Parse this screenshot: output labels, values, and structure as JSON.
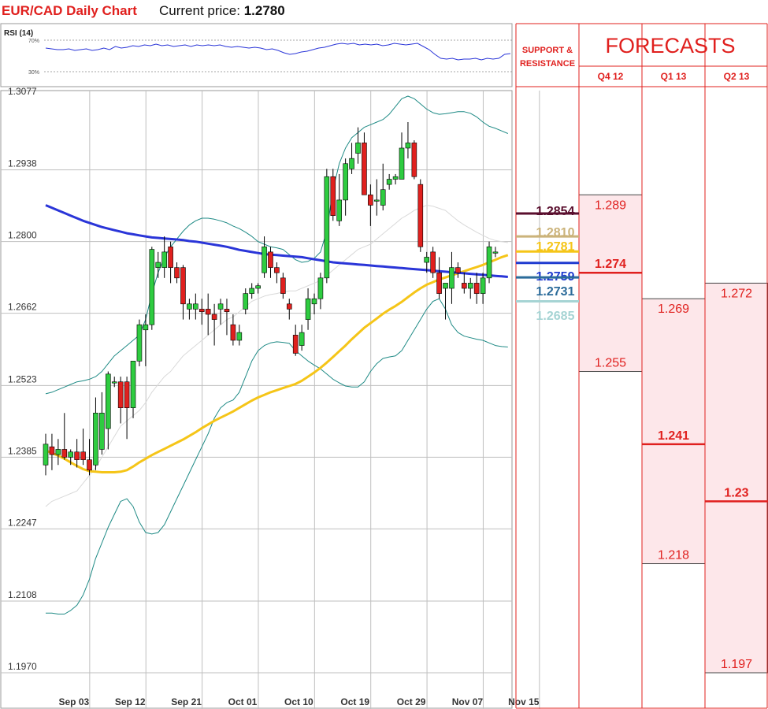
{
  "header": {
    "pair_title": "EUR/CAD Daily Chart",
    "price_label": "Current price:",
    "price_value": "1.2780"
  },
  "rsi_panel": {
    "label": "RSI (14)",
    "level_high": "70%",
    "level_low": "30%",
    "levels": [
      70,
      30
    ],
    "values": [
      60,
      59,
      58,
      58,
      59,
      57,
      58,
      59,
      57,
      58,
      60,
      58,
      62,
      60,
      61,
      63,
      62,
      64,
      63,
      65,
      63,
      64,
      62,
      63,
      64,
      62,
      64,
      63,
      64,
      63,
      64,
      62,
      61,
      62,
      61,
      60,
      61,
      60,
      58,
      59,
      57,
      54,
      52,
      53,
      55,
      56,
      58,
      60,
      61,
      63,
      65,
      66,
      65,
      66,
      64,
      65,
      64,
      65,
      63,
      64,
      66,
      65,
      64,
      65,
      66,
      62,
      58,
      52,
      47,
      46,
      47,
      45,
      46,
      46,
      47,
      45,
      47,
      46,
      47,
      52,
      53
    ]
  },
  "chart_data": {
    "type": "candlestick",
    "title": "EUR/CAD Daily Chart",
    "ylim": [
      1.197,
      1.3077
    ],
    "y_ticks": [
      "1.3077",
      "1.2938",
      "1.2800",
      "1.2662",
      "1.2523",
      "1.2385",
      "1.2247",
      "1.2108",
      "1.1970"
    ],
    "x_labels": [
      {
        "label": "Sep 03",
        "index": 2
      },
      {
        "label": "Sep 12",
        "index": 11
      },
      {
        "label": "Sep 21",
        "index": 20
      },
      {
        "label": "Oct 01",
        "index": 29
      },
      {
        "label": "Oct 10",
        "index": 38
      },
      {
        "label": "Oct 19",
        "index": 47
      },
      {
        "label": "Oct 29",
        "index": 56
      },
      {
        "label": "Nov 07",
        "index": 65
      },
      {
        "label": "Nov 15",
        "index": 74
      }
    ],
    "candles": [
      {
        "o": 1.237,
        "h": 1.243,
        "l": 1.235,
        "c": 1.241
      },
      {
        "o": 1.2405,
        "h": 1.243,
        "l": 1.236,
        "c": 1.239
      },
      {
        "o": 1.239,
        "h": 1.242,
        "l": 1.237,
        "c": 1.24
      },
      {
        "o": 1.24,
        "h": 1.247,
        "l": 1.238,
        "c": 1.2385
      },
      {
        "o": 1.2385,
        "h": 1.24,
        "l": 1.237,
        "c": 1.2395
      },
      {
        "o": 1.2395,
        "h": 1.242,
        "l": 1.2365,
        "c": 1.238
      },
      {
        "o": 1.2395,
        "h": 1.244,
        "l": 1.237,
        "c": 1.238
      },
      {
        "o": 1.238,
        "h": 1.242,
        "l": 1.235,
        "c": 1.236
      },
      {
        "o": 1.237,
        "h": 1.25,
        "l": 1.236,
        "c": 1.247
      },
      {
        "o": 1.24,
        "h": 1.251,
        "l": 1.239,
        "c": 1.247
      },
      {
        "o": 1.244,
        "h": 1.255,
        "l": 1.24,
        "c": 1.2545
      },
      {
        "o": 1.253,
        "h": 1.254,
        "l": 1.252,
        "c": 1.253
      },
      {
        "o": 1.253,
        "h": 1.254,
        "l": 1.245,
        "c": 1.248
      },
      {
        "o": 1.253,
        "h": 1.254,
        "l": 1.242,
        "c": 1.248
      },
      {
        "o": 1.248,
        "h": 1.257,
        "l": 1.246,
        "c": 1.257
      },
      {
        "o": 1.257,
        "h": 1.265,
        "l": 1.256,
        "c": 1.264
      },
      {
        "o": 1.263,
        "h": 1.266,
        "l": 1.256,
        "c": 1.264
      },
      {
        "o": 1.264,
        "h": 1.279,
        "l": 1.263,
        "c": 1.2785
      },
      {
        "o": 1.275,
        "h": 1.278,
        "l": 1.273,
        "c": 1.276
      },
      {
        "o": 1.275,
        "h": 1.281,
        "l": 1.273,
        "c": 1.278
      },
      {
        "o": 1.279,
        "h": 1.28,
        "l": 1.272,
        "c": 1.275
      },
      {
        "o": 1.275,
        "h": 1.276,
        "l": 1.272,
        "c": 1.273
      },
      {
        "o": 1.275,
        "h": 1.2755,
        "l": 1.265,
        "c": 1.268
      },
      {
        "o": 1.267,
        "h": 1.269,
        "l": 1.265,
        "c": 1.268
      },
      {
        "o": 1.267,
        "h": 1.27,
        "l": 1.265,
        "c": 1.268
      },
      {
        "o": 1.267,
        "h": 1.269,
        "l": 1.264,
        "c": 1.2665
      },
      {
        "o": 1.267,
        "h": 1.27,
        "l": 1.262,
        "c": 1.266
      },
      {
        "o": 1.266,
        "h": 1.268,
        "l": 1.26,
        "c": 1.265
      },
      {
        "o": 1.267,
        "h": 1.269,
        "l": 1.264,
        "c": 1.268
      },
      {
        "o": 1.267,
        "h": 1.269,
        "l": 1.262,
        "c": 1.2665
      },
      {
        "o": 1.264,
        "h": 1.266,
        "l": 1.26,
        "c": 1.261
      },
      {
        "o": 1.261,
        "h": 1.264,
        "l": 1.26,
        "c": 1.2625
      },
      {
        "o": 1.267,
        "h": 1.271,
        "l": 1.266,
        "c": 1.27
      },
      {
        "o": 1.27,
        "h": 1.272,
        "l": 1.269,
        "c": 1.271
      },
      {
        "o": 1.271,
        "h": 1.272,
        "l": 1.27,
        "c": 1.2715
      },
      {
        "o": 1.274,
        "h": 1.281,
        "l": 1.273,
        "c": 1.279
      },
      {
        "o": 1.278,
        "h": 1.279,
        "l": 1.273,
        "c": 1.275
      },
      {
        "o": 1.275,
        "h": 1.276,
        "l": 1.272,
        "c": 1.274
      },
      {
        "o": 1.273,
        "h": 1.274,
        "l": 1.269,
        "c": 1.27
      },
      {
        "o": 1.268,
        "h": 1.269,
        "l": 1.265,
        "c": 1.267
      },
      {
        "o": 1.262,
        "h": 1.264,
        "l": 1.258,
        "c": 1.2585
      },
      {
        "o": 1.26,
        "h": 1.264,
        "l": 1.259,
        "c": 1.2625
      },
      {
        "o": 1.265,
        "h": 1.271,
        "l": 1.263,
        "c": 1.269
      },
      {
        "o": 1.268,
        "h": 1.27,
        "l": 1.266,
        "c": 1.269
      },
      {
        "o": 1.269,
        "h": 1.274,
        "l": 1.267,
        "c": 1.273
      },
      {
        "o": 1.273,
        "h": 1.294,
        "l": 1.272,
        "c": 1.2925
      },
      {
        "o": 1.2925,
        "h": 1.294,
        "l": 1.284,
        "c": 1.285
      },
      {
        "o": 1.284,
        "h": 1.293,
        "l": 1.283,
        "c": 1.288
      },
      {
        "o": 1.288,
        "h": 1.296,
        "l": 1.285,
        "c": 1.295
      },
      {
        "o": 1.294,
        "h": 1.299,
        "l": 1.293,
        "c": 1.296
      },
      {
        "o": 1.297,
        "h": 1.302,
        "l": 1.295,
        "c": 1.299
      },
      {
        "o": 1.299,
        "h": 1.301,
        "l": 1.289,
        "c": 1.289
      },
      {
        "o": 1.289,
        "h": 1.291,
        "l": 1.283,
        "c": 1.287
      },
      {
        "o": 1.288,
        "h": 1.292,
        "l": 1.285,
        "c": 1.288
      },
      {
        "o": 1.287,
        "h": 1.295,
        "l": 1.286,
        "c": 1.29
      },
      {
        "o": 1.291,
        "h": 1.293,
        "l": 1.29,
        "c": 1.292
      },
      {
        "o": 1.292,
        "h": 1.293,
        "l": 1.291,
        "c": 1.2925
      },
      {
        "o": 1.292,
        "h": 1.301,
        "l": 1.292,
        "c": 1.298
      },
      {
        "o": 1.298,
        "h": 1.303,
        "l": 1.296,
        "c": 1.299
      },
      {
        "o": 1.299,
        "h": 1.2995,
        "l": 1.292,
        "c": 1.2925
      },
      {
        "o": 1.291,
        "h": 1.292,
        "l": 1.278,
        "c": 1.279
      },
      {
        "o": 1.276,
        "h": 1.278,
        "l": 1.274,
        "c": 1.277
      },
      {
        "o": 1.278,
        "h": 1.279,
        "l": 1.273,
        "c": 1.274
      },
      {
        "o": 1.274,
        "h": 1.277,
        "l": 1.269,
        "c": 1.27
      },
      {
        "o": 1.271,
        "h": 1.272,
        "l": 1.265,
        "c": 1.272
      },
      {
        "o": 1.271,
        "h": 1.278,
        "l": 1.268,
        "c": 1.275
      },
      {
        "o": 1.275,
        "h": 1.276,
        "l": 1.273,
        "c": 1.274
      },
      {
        "o": 1.272,
        "h": 1.274,
        "l": 1.27,
        "c": 1.271
      },
      {
        "o": 1.271,
        "h": 1.273,
        "l": 1.269,
        "c": 1.272
      },
      {
        "o": 1.272,
        "h": 1.274,
        "l": 1.268,
        "c": 1.27
      },
      {
        "o": 1.27,
        "h": 1.274,
        "l": 1.268,
        "c": 1.273
      },
      {
        "o": 1.273,
        "h": 1.28,
        "l": 1.272,
        "c": 1.279
      },
      {
        "o": 1.278,
        "h": 1.279,
        "l": 1.277,
        "c": 1.278
      }
    ],
    "series": [
      {
        "name": "",
        "color": "#2a35d8",
        "values": [
          1.287,
          1.2865,
          1.286,
          1.2855,
          1.285,
          1.2845,
          1.284,
          1.2836,
          1.2832,
          1.2828,
          1.2825,
          1.2822,
          1.2819,
          1.2816,
          1.2814,
          1.2812,
          1.281,
          1.2808,
          1.2807,
          1.2806,
          1.2805,
          1.2804,
          1.2803,
          1.2801,
          1.28,
          1.2798,
          1.2796,
          1.2794,
          1.2792,
          1.279,
          1.2787,
          1.2784,
          1.2782,
          1.278,
          1.2778,
          1.2776,
          1.2775,
          1.2774,
          1.2773,
          1.2772,
          1.2771,
          1.277,
          1.2768,
          1.2766,
          1.2764,
          1.2762,
          1.276,
          1.2759,
          1.2758,
          1.2757,
          1.2756,
          1.2755,
          1.2754,
          1.2753,
          1.2752,
          1.2751,
          1.275,
          1.2749,
          1.2748,
          1.2747,
          1.2746,
          1.2745,
          1.2744,
          1.2743,
          1.2742,
          1.2741,
          1.274,
          1.2739,
          1.2738,
          1.2737,
          1.2736,
          1.2735,
          1.2734,
          1.2733,
          1.2732
        ]
      },
      {
        "name": "",
        "color": "#f5c518",
        "values": [
          1.2398,
          1.2393,
          1.2388,
          1.2382,
          1.2375,
          1.2368,
          1.2362,
          1.2358,
          1.2357,
          1.2356,
          1.2356,
          1.2356,
          1.2357,
          1.236,
          1.2367,
          1.2375,
          1.2382,
          1.2389,
          1.2395,
          1.2401,
          1.2407,
          1.2413,
          1.2419,
          1.2426,
          1.2433,
          1.2441,
          1.2448,
          1.2455,
          1.2461,
          1.2467,
          1.2473,
          1.248,
          1.2487,
          1.2494,
          1.25,
          1.2505,
          1.251,
          1.2514,
          1.2518,
          1.2522,
          1.2526,
          1.2532,
          1.254,
          1.2548,
          1.2557,
          1.2567,
          1.2578,
          1.2589,
          1.26,
          1.2612,
          1.2623,
          1.2634,
          1.2643,
          1.2652,
          1.2661,
          1.2669,
          1.2676,
          1.2684,
          1.2693,
          1.2702,
          1.271,
          1.2717,
          1.2722,
          1.2727,
          1.2731,
          1.2735,
          1.2739,
          1.2743,
          1.2747,
          1.2751,
          1.2755,
          1.276,
          1.2765,
          1.277,
          1.2774
        ]
      },
      {
        "name": "",
        "color": "#1e8a85",
        "values": [
          1.2507,
          1.251,
          1.2515,
          1.252,
          1.2525,
          1.253,
          1.2532,
          1.2535,
          1.254,
          1.255,
          1.2565,
          1.258,
          1.259,
          1.26,
          1.261,
          1.262,
          1.265,
          1.27,
          1.274,
          1.277,
          1.279,
          1.2805,
          1.282,
          1.2832,
          1.284,
          1.2845,
          1.2845,
          1.2843,
          1.284,
          1.2836,
          1.283,
          1.2825,
          1.2818,
          1.281,
          1.28,
          1.2795,
          1.279,
          1.2788,
          1.2785,
          1.2775,
          1.2765,
          1.276,
          1.2762,
          1.2768,
          1.278,
          1.282,
          1.29,
          1.295,
          1.298,
          1.3,
          1.301,
          1.302,
          1.3025,
          1.303,
          1.3035,
          1.3045,
          1.306,
          1.3075,
          1.308,
          1.3075,
          1.3065,
          1.3055,
          1.3048,
          1.3045,
          1.3046,
          1.3048,
          1.305,
          1.305,
          1.3047,
          1.304,
          1.303,
          1.3022,
          1.3018,
          1.3013,
          1.3008
        ]
      },
      {
        "name": "",
        "color": "#1e8a85",
        "values": [
          1.2085,
          1.2085,
          1.2083,
          1.2083,
          1.209,
          1.21,
          1.212,
          1.215,
          1.219,
          1.222,
          1.225,
          1.2275,
          1.23,
          1.2305,
          1.229,
          1.226,
          1.224,
          1.2237,
          1.224,
          1.2255,
          1.228,
          1.2305,
          1.233,
          1.2355,
          1.238,
          1.2405,
          1.243,
          1.246,
          1.248,
          1.249,
          1.2495,
          1.251,
          1.254,
          1.257,
          1.259,
          1.26,
          1.2605,
          1.2607,
          1.2606,
          1.2604,
          1.259,
          1.258,
          1.257,
          1.2562,
          1.2555,
          1.2545,
          1.2535,
          1.2528,
          1.2522,
          1.252,
          1.252,
          1.253,
          1.255,
          1.2565,
          1.2575,
          1.2578,
          1.258,
          1.259,
          1.261,
          1.263,
          1.265,
          1.267,
          1.2685,
          1.269,
          1.267,
          1.264,
          1.2625,
          1.2618,
          1.2615,
          1.2612,
          1.261,
          1.2605,
          1.26,
          1.2598,
          1.2597
        ]
      },
      {
        "name": "",
        "color": "#d9d9d9",
        "values": [
          1.229,
          1.23,
          1.2305,
          1.231,
          1.2315,
          1.232,
          1.2335,
          1.235,
          1.2365,
          1.2385,
          1.2405,
          1.2425,
          1.2445,
          1.2455,
          1.2465,
          1.2475,
          1.249,
          1.251,
          1.2525,
          1.254,
          1.255,
          1.2565,
          1.258,
          1.259,
          1.26,
          1.261,
          1.262,
          1.263,
          1.264,
          1.265,
          1.2655,
          1.2665,
          1.2675,
          1.2685,
          1.269,
          1.2695,
          1.2698,
          1.27,
          1.2703,
          1.2705,
          1.2705,
          1.271,
          1.2715,
          1.272,
          1.2725,
          1.2735,
          1.2745,
          1.2755,
          1.2765,
          1.2775,
          1.2785,
          1.279,
          1.2795,
          1.2805,
          1.2815,
          1.2825,
          1.2835,
          1.2845,
          1.2852,
          1.286,
          1.2865,
          1.287,
          1.2868,
          1.2864,
          1.286,
          1.285,
          1.284,
          1.2832,
          1.2825,
          1.2818,
          1.2812,
          1.2806,
          1.2802,
          1.28,
          1.2798
        ]
      }
    ]
  },
  "panel": {
    "header_left": "SUPPORT & RESISTANCE",
    "header_left_line1": "SUPPORT &",
    "header_left_line2": "RESISTANCE",
    "header_right": "FORECASTS",
    "quarters": [
      "Q4 12",
      "Q1 13",
      "Q2 13"
    ],
    "levels": [
      {
        "label": "1.2854",
        "value": 1.2854,
        "color": "#5a0f2e"
      },
      {
        "label": "1.2810",
        "value": 1.281,
        "color": "#cbb37a"
      },
      {
        "label": "1.2781",
        "value": 1.2781,
        "color": "#f5c518"
      },
      {
        "label": "1.2759",
        "value": 1.2759,
        "color": "#1f3bd0"
      },
      {
        "label": "1.2731",
        "value": 1.2731,
        "color": "#2b6b9a"
      },
      {
        "label": "1.2685",
        "value": 1.2685,
        "color": "#a6d4d4"
      }
    ],
    "forecasts": [
      {
        "quarter": "Q4 12",
        "high": "1.289",
        "mid": "1.274",
        "low": "1.255",
        "high_v": 1.289,
        "mid_v": 1.274,
        "low_v": 1.255
      },
      {
        "quarter": "Q1 13",
        "high": "1.269",
        "mid": "1.241",
        "low": "1.218",
        "high_v": 1.269,
        "mid_v": 1.241,
        "low_v": 1.218
      },
      {
        "quarter": "Q2 13",
        "high": "1.272",
        "mid": "1.23",
        "low": "1.197",
        "high_v": 1.272,
        "mid_v": 1.23,
        "low_v": 1.197
      }
    ]
  },
  "colors": {
    "title_red": "#e0201e",
    "bull": "#2ecc40",
    "bear": "#e0201e",
    "forecast_fill": "#fde7ea",
    "forecast_line": "#e0201e",
    "panel_border": "#e0201e",
    "grid": "#bfbfbf",
    "frame": "#9a9a9a"
  }
}
